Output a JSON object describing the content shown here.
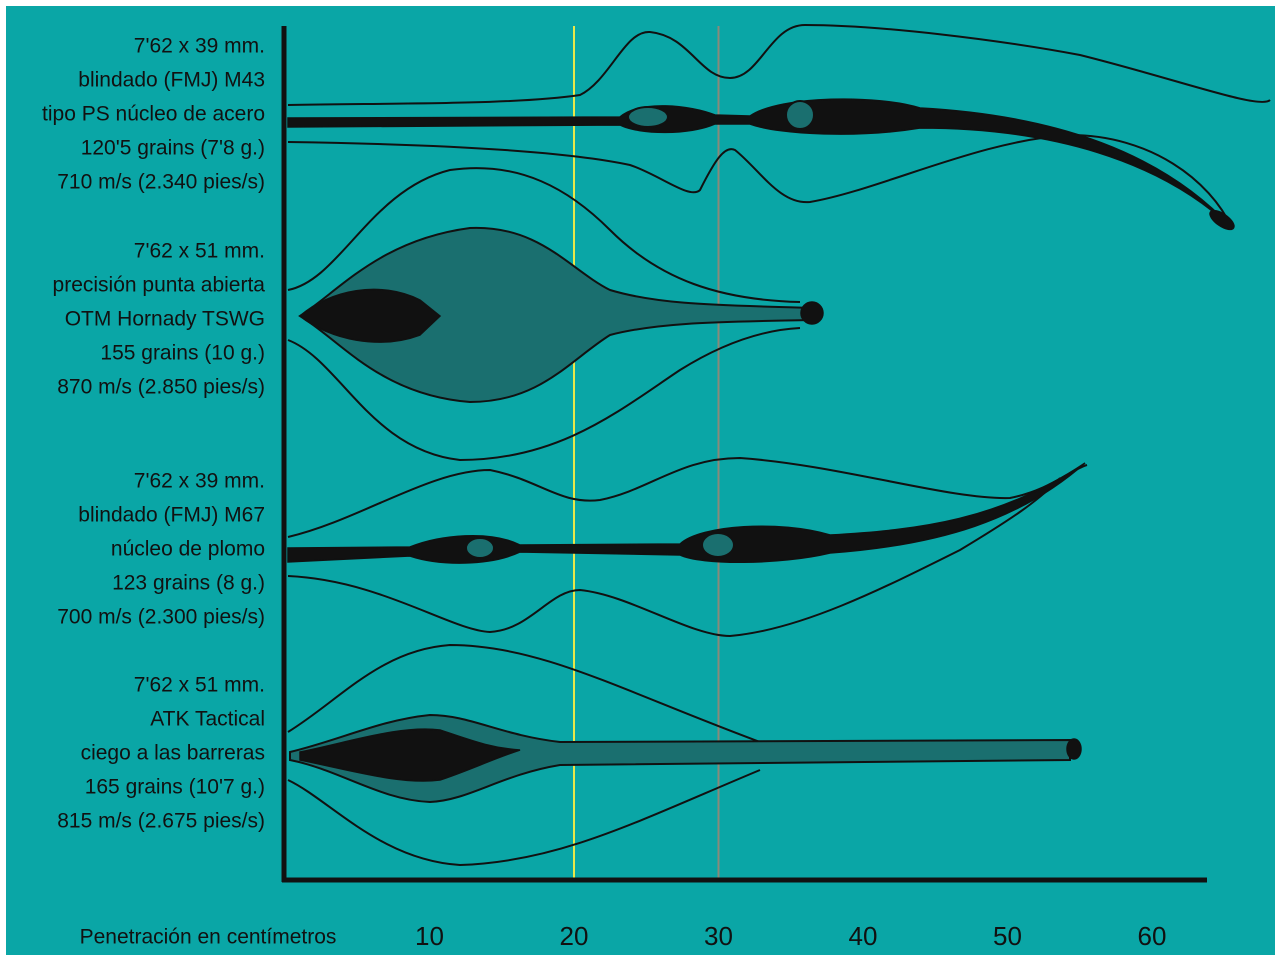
{
  "bullets": [
    {
      "lines": [
        "7'62 x 39 mm.",
        "blindado (FMJ) M43",
        "tipo PS núcleo de acero",
        "120'5 grains (7'8 g.)",
        "710 m/s (2.340 pies/s)"
      ]
    },
    {
      "lines": [
        "7'62 x 51 mm.",
        "precisión punta abierta",
        "OTM Hornady TSWG",
        "155 grains (10 g.)",
        "870 m/s (2.850 pies/s)"
      ]
    },
    {
      "lines": [
        "7'62 x 39 mm.",
        "blindado (FMJ) M67",
        "núcleo de plomo",
        "123 grains (8 g.)",
        "700 m/s (2.300 pies/s)"
      ]
    },
    {
      "lines": [
        "7'62 x 51 mm.",
        "ATK Tactical",
        "ciego a las barreras",
        "165 grains (10'7 g.)",
        "815 m/s (2.675 pies/s)"
      ]
    }
  ],
  "axis": {
    "label": "Penetración en centímetros",
    "ticks": [
      10,
      20,
      30,
      40,
      50,
      60
    ]
  }
}
